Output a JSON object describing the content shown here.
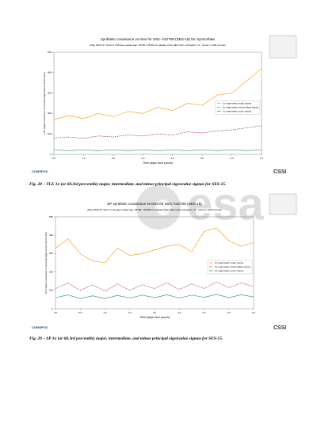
{
  "chart_data": [
    {
      "type": "line",
      "title": "Synthetic covariance vs time for SSC-Ä42709 (SES-15) for SynCoPate",
      "subtitle": "(May 2024)  57 TLEs of 3.65-day median age, 35789 x 35781 km altitude circle GEO orbit, inclination = 0°, period = 1436 minutes",
      "x_label": "Time (days from epoch)",
      "y_label": "One sigma covariance in principal eigenvectors frame (km)",
      "x": [
        0,
        0.5,
        1,
        1.5,
        2,
        2.5,
        3,
        3.5,
        4,
        4.5,
        5,
        5.5,
        6,
        6.5,
        7
      ],
      "xlim": [
        0,
        7
      ],
      "xticks": [
        {
          "value": 0,
          "label": "0.0"
        },
        {
          "value": 1,
          "label": "1.0"
        },
        {
          "value": 2,
          "label": "2.0"
        },
        {
          "value": 3,
          "label": "3.0"
        },
        {
          "value": 4,
          "label": "4.0"
        },
        {
          "value": 5,
          "label": "5.0"
        },
        {
          "value": 6,
          "label": "6.0"
        },
        {
          "value": 7,
          "label": "7.0"
        }
      ],
      "ylim": [
        0,
        500
      ],
      "yticks": [
        0,
        100,
        200,
        300,
        400,
        500
      ],
      "legend": "right",
      "series": [
        {
          "name": "1σ eigenvalue major sigma",
          "color": "#f5a623",
          "dashed": false,
          "values": [
            170,
            190,
            175,
            200,
            185,
            210,
            200,
            230,
            215,
            250,
            240,
            290,
            300,
            360,
            420
          ]
        },
        {
          "name": "1σ eigenvalue intermediate sigma",
          "color": "#b0306a",
          "dashed": true,
          "values": [
            80,
            85,
            78,
            90,
            85,
            95,
            90,
            100,
            95,
            110,
            105,
            115,
            120,
            130,
            140
          ]
        },
        {
          "name": "1σ eigenvalue minor sigma",
          "color": "#3aa36b",
          "dashed": false,
          "values": [
            22,
            18,
            22,
            18,
            22,
            18,
            22,
            18,
            22,
            18,
            22,
            18,
            22,
            18,
            22
          ]
        }
      ]
    },
    {
      "type": "line",
      "title": "SP synthetic covariance vs time for SSC-Ä42709 (SES-15)",
      "subtitle": "(May 2024)  57 SPs of 1.52-day median age, 35786 x 35785 km altitude circle GEO orbit, inclination = 0°, period = 1436 minutes",
      "x_label": "Time (days from epoch)",
      "y_label": "One sigma covariance in principal eigenvectors frame (km)",
      "x": [
        0,
        0.25,
        0.5,
        0.75,
        1,
        1.25,
        1.5,
        1.75,
        2,
        2.25,
        2.5,
        2.75,
        3,
        3.25,
        3.5,
        3.75,
        4
      ],
      "xlim": [
        0,
        4
      ],
      "xticks": [
        {
          "value": 0,
          "label": "0.0"
        },
        {
          "value": 0.5,
          "label": "0.5"
        },
        {
          "value": 1,
          "label": "1.0"
        },
        {
          "value": 1.5,
          "label": "1.5"
        },
        {
          "value": 2,
          "label": "2.0"
        },
        {
          "value": 2.5,
          "label": "2.5"
        },
        {
          "value": 3,
          "label": "3.0"
        },
        {
          "value": 3.5,
          "label": "3.5"
        },
        {
          "value": 4,
          "label": "4.0"
        }
      ],
      "ylim": [
        0,
        500
      ],
      "yticks": [
        0,
        100,
        200,
        300,
        400,
        500
      ],
      "legend": "right",
      "series": [
        {
          "name": "1σ eigenvalue major sigma",
          "color": "#f5a623",
          "dashed": false,
          "values": [
            330,
            380,
            300,
            260,
            250,
            330,
            290,
            300,
            320,
            340,
            350,
            310,
            420,
            440,
            370,
            340,
            360
          ]
        },
        {
          "name": "1σ eigenvalue intermediate sigma",
          "color": "#b0306a",
          "dashed": true,
          "values": [
            110,
            140,
            100,
            130,
            95,
            135,
            100,
            130,
            110,
            140,
            105,
            135,
            110,
            145,
            115,
            140,
            120
          ]
        },
        {
          "name": "1σ eigenvalue minor sigma",
          "color": "#3aa36b",
          "dashed": false,
          "values": [
            60,
            75,
            55,
            70,
            55,
            72,
            58,
            74,
            60,
            76,
            58,
            74,
            62,
            78,
            60,
            76,
            64
          ]
        }
      ]
    }
  ],
  "captions": [
    "Fig. 28 – TLE 1σ (or 68.3rd percentile) major, intermediate, and minor principal eigenvalue sigmas for SES-15.",
    "Fig. 29 – SP 1σ (or 68.3rd percentile) major, intermediate, and minor principal eigenvalue sigmas for SES-15."
  ],
  "logos": {
    "left": "COMSPOC",
    "right": "CSSI"
  },
  "watermark": "esa"
}
